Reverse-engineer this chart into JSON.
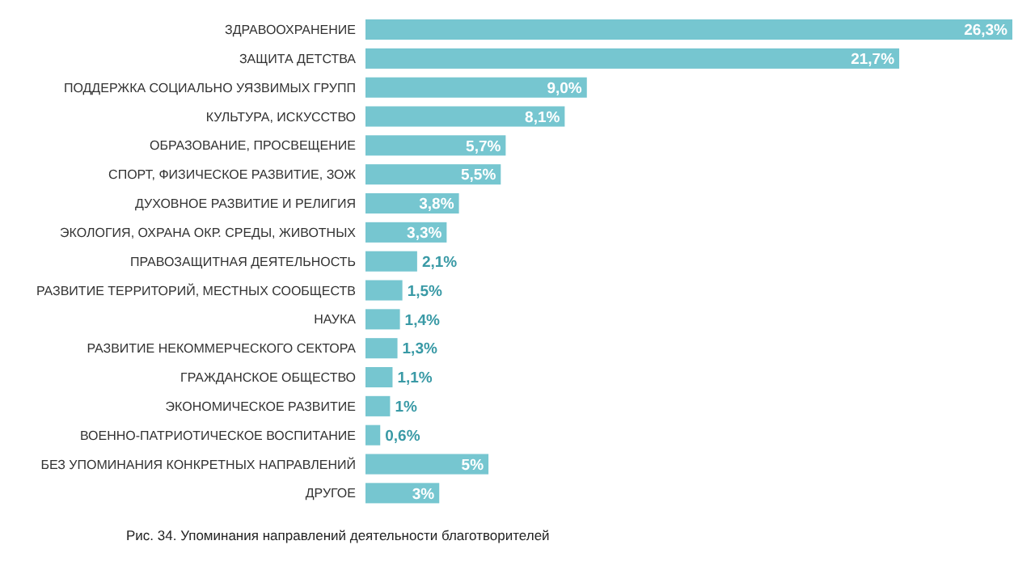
{
  "chart_data": {
    "type": "bar",
    "orientation": "horizontal",
    "title": "Рис. 34. Упоминания направлений деятельности благотворителей",
    "categories": [
      "ЗДРАВООХРАНЕНИЕ",
      "ЗАЩИТА ДЕТСТВА",
      "ПОДДЕРЖКА СОЦИАЛЬНО УЯЗВИМЫХ ГРУПП",
      "КУЛЬТУРА, ИСКУССТВО",
      "ОБРАЗОВАНИЕ, ПРОСВЕЩЕНИЕ",
      "СПОРТ, ФИЗИЧЕСКОЕ РАЗВИТИЕ, ЗОЖ",
      "ДУХОВНОЕ РАЗВИТИЕ И РЕЛИГИЯ",
      "ЭКОЛОГИЯ, ОХРАНА ОКР. СРЕДЫ, ЖИВОТНЫХ",
      "ПРАВОЗАЩИТНАЯ ДЕЯТЕЛЬНОСТЬ",
      "РАЗВИТИЕ ТЕРРИТОРИЙ, МЕСТНЫХ СООБЩЕСТВ",
      "НАУКА",
      "РАЗВИТИЕ НЕКОММЕРЧЕСКОГО СЕКТОРА",
      "ГРАЖДАНСКОЕ ОБЩЕСТВО",
      "ЭКОНОМИЧЕСКОЕ РАЗВИТИЕ",
      "ВОЕННО-ПАТРИОТИЧЕСКОЕ ВОСПИТАНИЕ",
      "БЕЗ УПОМИНАНИЯ КОНКРЕТНЫХ НАПРАВЛЕНИЙ",
      "ДРУГОЕ"
    ],
    "values": [
      26.3,
      21.7,
      9.0,
      8.1,
      5.7,
      5.5,
      3.8,
      3.3,
      2.1,
      1.5,
      1.4,
      1.3,
      1.1,
      1,
      0.6,
      5,
      3
    ],
    "value_labels": [
      "26,3%",
      "21,7%",
      "9,0%",
      "8,1%",
      "5,7%",
      "5,5%",
      "3,8%",
      "3,3%",
      "2,1%",
      "1,5%",
      "1,4%",
      "1,3%",
      "1,1%",
      "1%",
      "0,6%",
      "5%",
      "3%"
    ],
    "color": "#76c6d0"
  }
}
